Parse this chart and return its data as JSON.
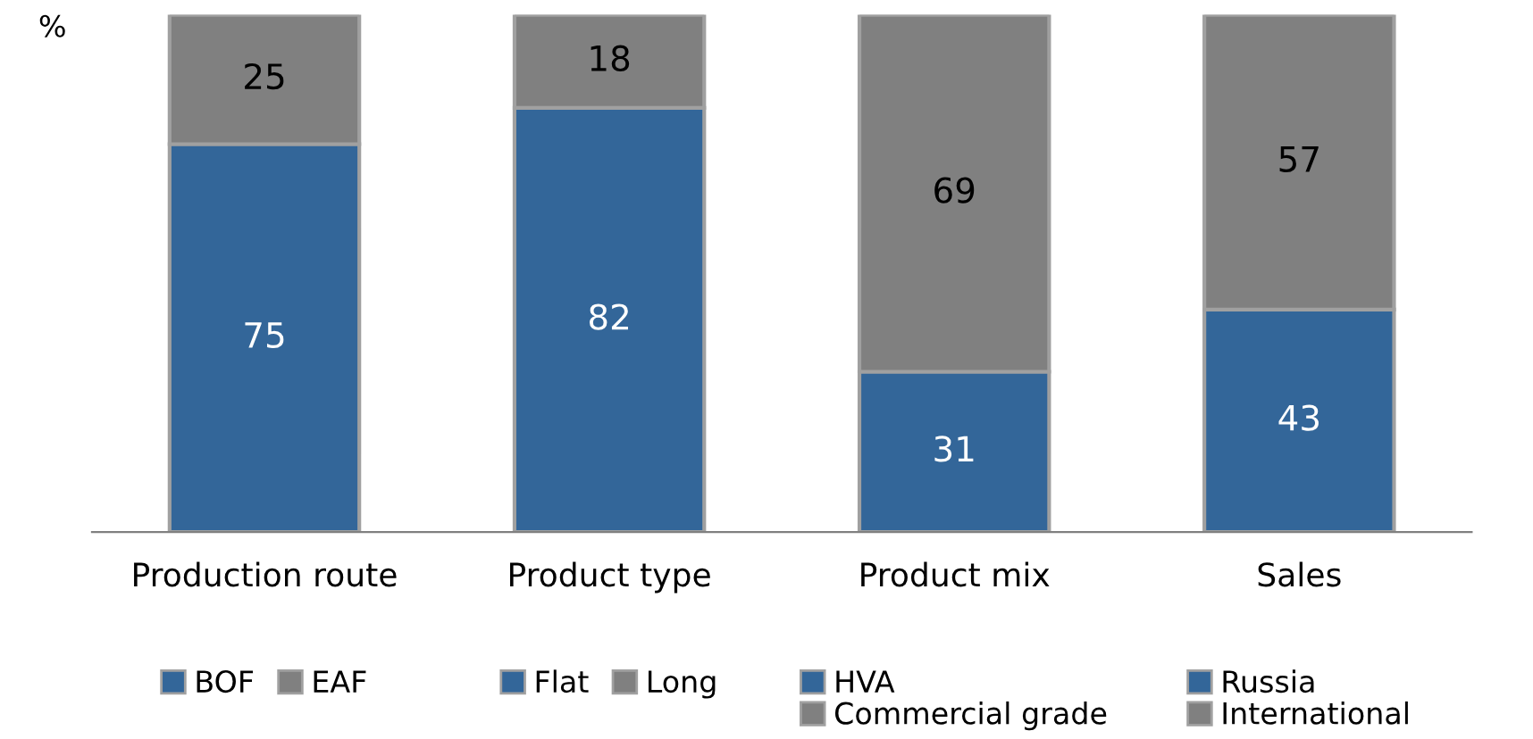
{
  "chart_data": {
    "type": "bar",
    "stacked": true,
    "ylabel": "%",
    "categories": [
      "Production route",
      "Product type",
      "Product mix",
      "Sales"
    ],
    "series": [
      {
        "name": "BOF",
        "color": "#336699",
        "values": [
          75,
          null,
          null,
          null
        ]
      },
      {
        "name": "EAF",
        "color": "#808080",
        "values": [
          25,
          null,
          null,
          null
        ]
      },
      {
        "name": "Flat",
        "color": "#336699",
        "values": [
          null,
          82,
          null,
          null
        ]
      },
      {
        "name": "Long",
        "color": "#808080",
        "values": [
          null,
          18,
          null,
          null
        ]
      },
      {
        "name": "HVA",
        "color": "#336699",
        "values": [
          null,
          null,
          31,
          null
        ]
      },
      {
        "name": "Commercial grade",
        "color": "#808080",
        "values": [
          null,
          null,
          69,
          null
        ]
      },
      {
        "name": "Russia",
        "color": "#336699",
        "values": [
          null,
          null,
          null,
          43
        ]
      },
      {
        "name": "International",
        "color": "#808080",
        "values": [
          null,
          null,
          null,
          57
        ]
      }
    ],
    "ylim": [
      0,
      100
    ],
    "data_labels": true,
    "legend": "bottom",
    "grid": false,
    "tick_labels": "x"
  }
}
